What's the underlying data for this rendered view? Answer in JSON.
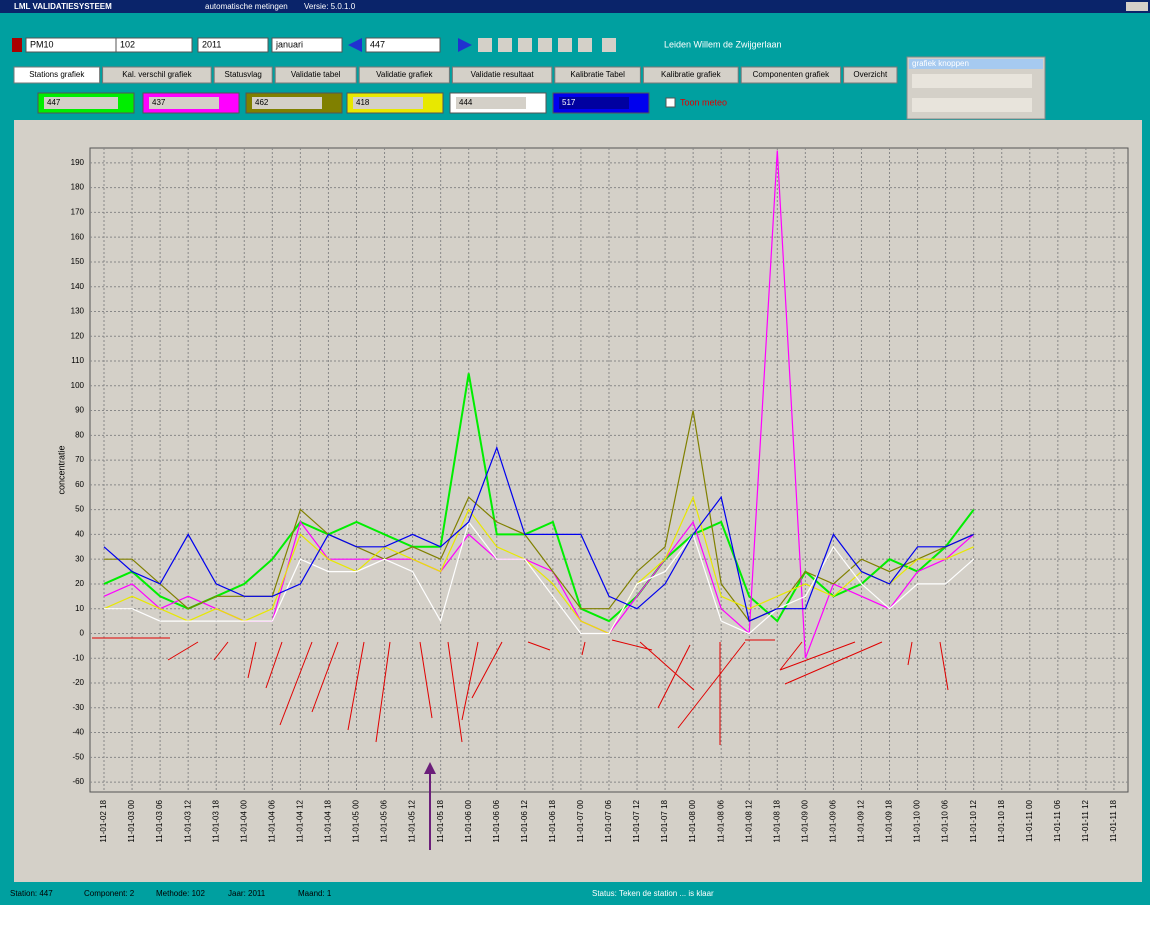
{
  "app": {
    "title": "LML VALIDATIESYSTEEM",
    "subtitle": "automatische metingen",
    "version": "Versie: 5.0.1.0",
    "toolbar": {
      "component": "PM10",
      "method": "102",
      "year": "2011",
      "month": "januari",
      "station": "447",
      "location": "Leiden Willem de Zwijgerlaan"
    },
    "tabs": [
      "Stations grafiek",
      "Kal. verschil grafiek",
      "Statusvlag",
      "Validatie tabel",
      "Validatie grafiek",
      "Validatie resultaat",
      "Kalibratie Tabel",
      "Kalibratie grafiek",
      "Componenten grafiek",
      "Overzicht"
    ],
    "meteo": "Toon meteo",
    "panel_title": "grafiek knoppen",
    "status": [
      "Station: 447",
      "Component: 2",
      "Methode: 102",
      "Jaar: 2011",
      "Maand: 1",
      "Status: Teken de station ... is klaar"
    ]
  },
  "chart_data": {
    "type": "line",
    "y_label": "concentratie",
    "categories": [
      "11-01-02 18",
      "11-01-03 00",
      "11-01-03 06",
      "11-01-03 12",
      "11-01-03 18",
      "11-01-04 00",
      "11-01-04 06",
      "11-01-04 12",
      "11-01-04 18",
      "11-01-05 00",
      "11-01-05 06",
      "11-01-05 12",
      "11-01-05 18",
      "11-01-06 00",
      "11-01-06 06",
      "11-01-06 12",
      "11-01-06 18",
      "11-01-07 00",
      "11-01-07 06",
      "11-01-07 12",
      "11-01-07 18",
      "11-01-08 00",
      "11-01-08 06",
      "11-01-08 12",
      "11-01-08 18",
      "11-01-09 00",
      "11-01-09 06",
      "11-01-09 12",
      "11-01-09 18",
      "11-01-10 00",
      "11-01-10 06",
      "11-01-10 12",
      "11-01-10 18",
      "11-01-11 00",
      "11-01-11 06",
      "11-01-11 12",
      "11-01-11 18"
    ],
    "series": [
      {
        "name": "447",
        "color": "#00ee00",
        "values": [
          20,
          25,
          15,
          10,
          15,
          20,
          30,
          45,
          40,
          45,
          40,
          35,
          35,
          105,
          40,
          40,
          45,
          10,
          5,
          15,
          30,
          40,
          45,
          15,
          5,
          25,
          15,
          20,
          30,
          25,
          35,
          50,
          null,
          null,
          null,
          null,
          null
        ]
      },
      {
        "name": "437",
        "color": "#ff00ff",
        "values": [
          15,
          20,
          10,
          15,
          10,
          5,
          5,
          45,
          30,
          30,
          30,
          30,
          25,
          40,
          30,
          30,
          25,
          5,
          0,
          15,
          30,
          45,
          10,
          0,
          195,
          -10,
          20,
          15,
          10,
          25,
          30,
          40,
          null,
          null,
          null,
          null,
          null
        ]
      },
      {
        "name": "462",
        "color": "#808000",
        "values": [
          30,
          30,
          20,
          10,
          15,
          15,
          15,
          50,
          40,
          35,
          30,
          35,
          30,
          55,
          45,
          40,
          25,
          10,
          10,
          25,
          35,
          90,
          20,
          5,
          10,
          25,
          20,
          30,
          25,
          30,
          35,
          40,
          null,
          null,
          null,
          null,
          null
        ]
      },
      {
        "name": "418",
        "color": "#e8e800",
        "values": [
          10,
          15,
          10,
          5,
          10,
          5,
          10,
          40,
          30,
          25,
          35,
          30,
          25,
          50,
          35,
          30,
          20,
          5,
          0,
          20,
          30,
          55,
          15,
          10,
          15,
          20,
          15,
          25,
          20,
          30,
          30,
          35,
          null,
          null,
          null,
          null,
          null
        ]
      },
      {
        "name": "444",
        "color": "#ffffff",
        "values": [
          10,
          10,
          5,
          5,
          5,
          5,
          5,
          30,
          25,
          25,
          30,
          25,
          5,
          45,
          30,
          30,
          15,
          0,
          0,
          20,
          25,
          40,
          5,
          0,
          10,
          15,
          35,
          20,
          10,
          20,
          20,
          30,
          null,
          null,
          null,
          null,
          null
        ]
      },
      {
        "name": "517",
        "color": "#0000ee",
        "values": [
          35,
          25,
          20,
          40,
          20,
          15,
          15,
          20,
          40,
          35,
          35,
          40,
          35,
          45,
          75,
          40,
          40,
          40,
          15,
          10,
          20,
          40,
          55,
          5,
          10,
          10,
          40,
          25,
          20,
          35,
          35,
          40,
          null,
          null,
          null,
          null,
          null
        ]
      }
    ],
    "ylim": [
      -64,
      196
    ],
    "yticks": [
      -60,
      -50,
      -40,
      -30,
      -20,
      -10,
      0,
      10,
      20,
      30,
      40,
      50,
      60,
      70,
      80,
      90,
      100,
      110,
      120,
      130,
      140,
      150,
      160,
      170,
      180,
      190
    ],
    "grid": true
  }
}
